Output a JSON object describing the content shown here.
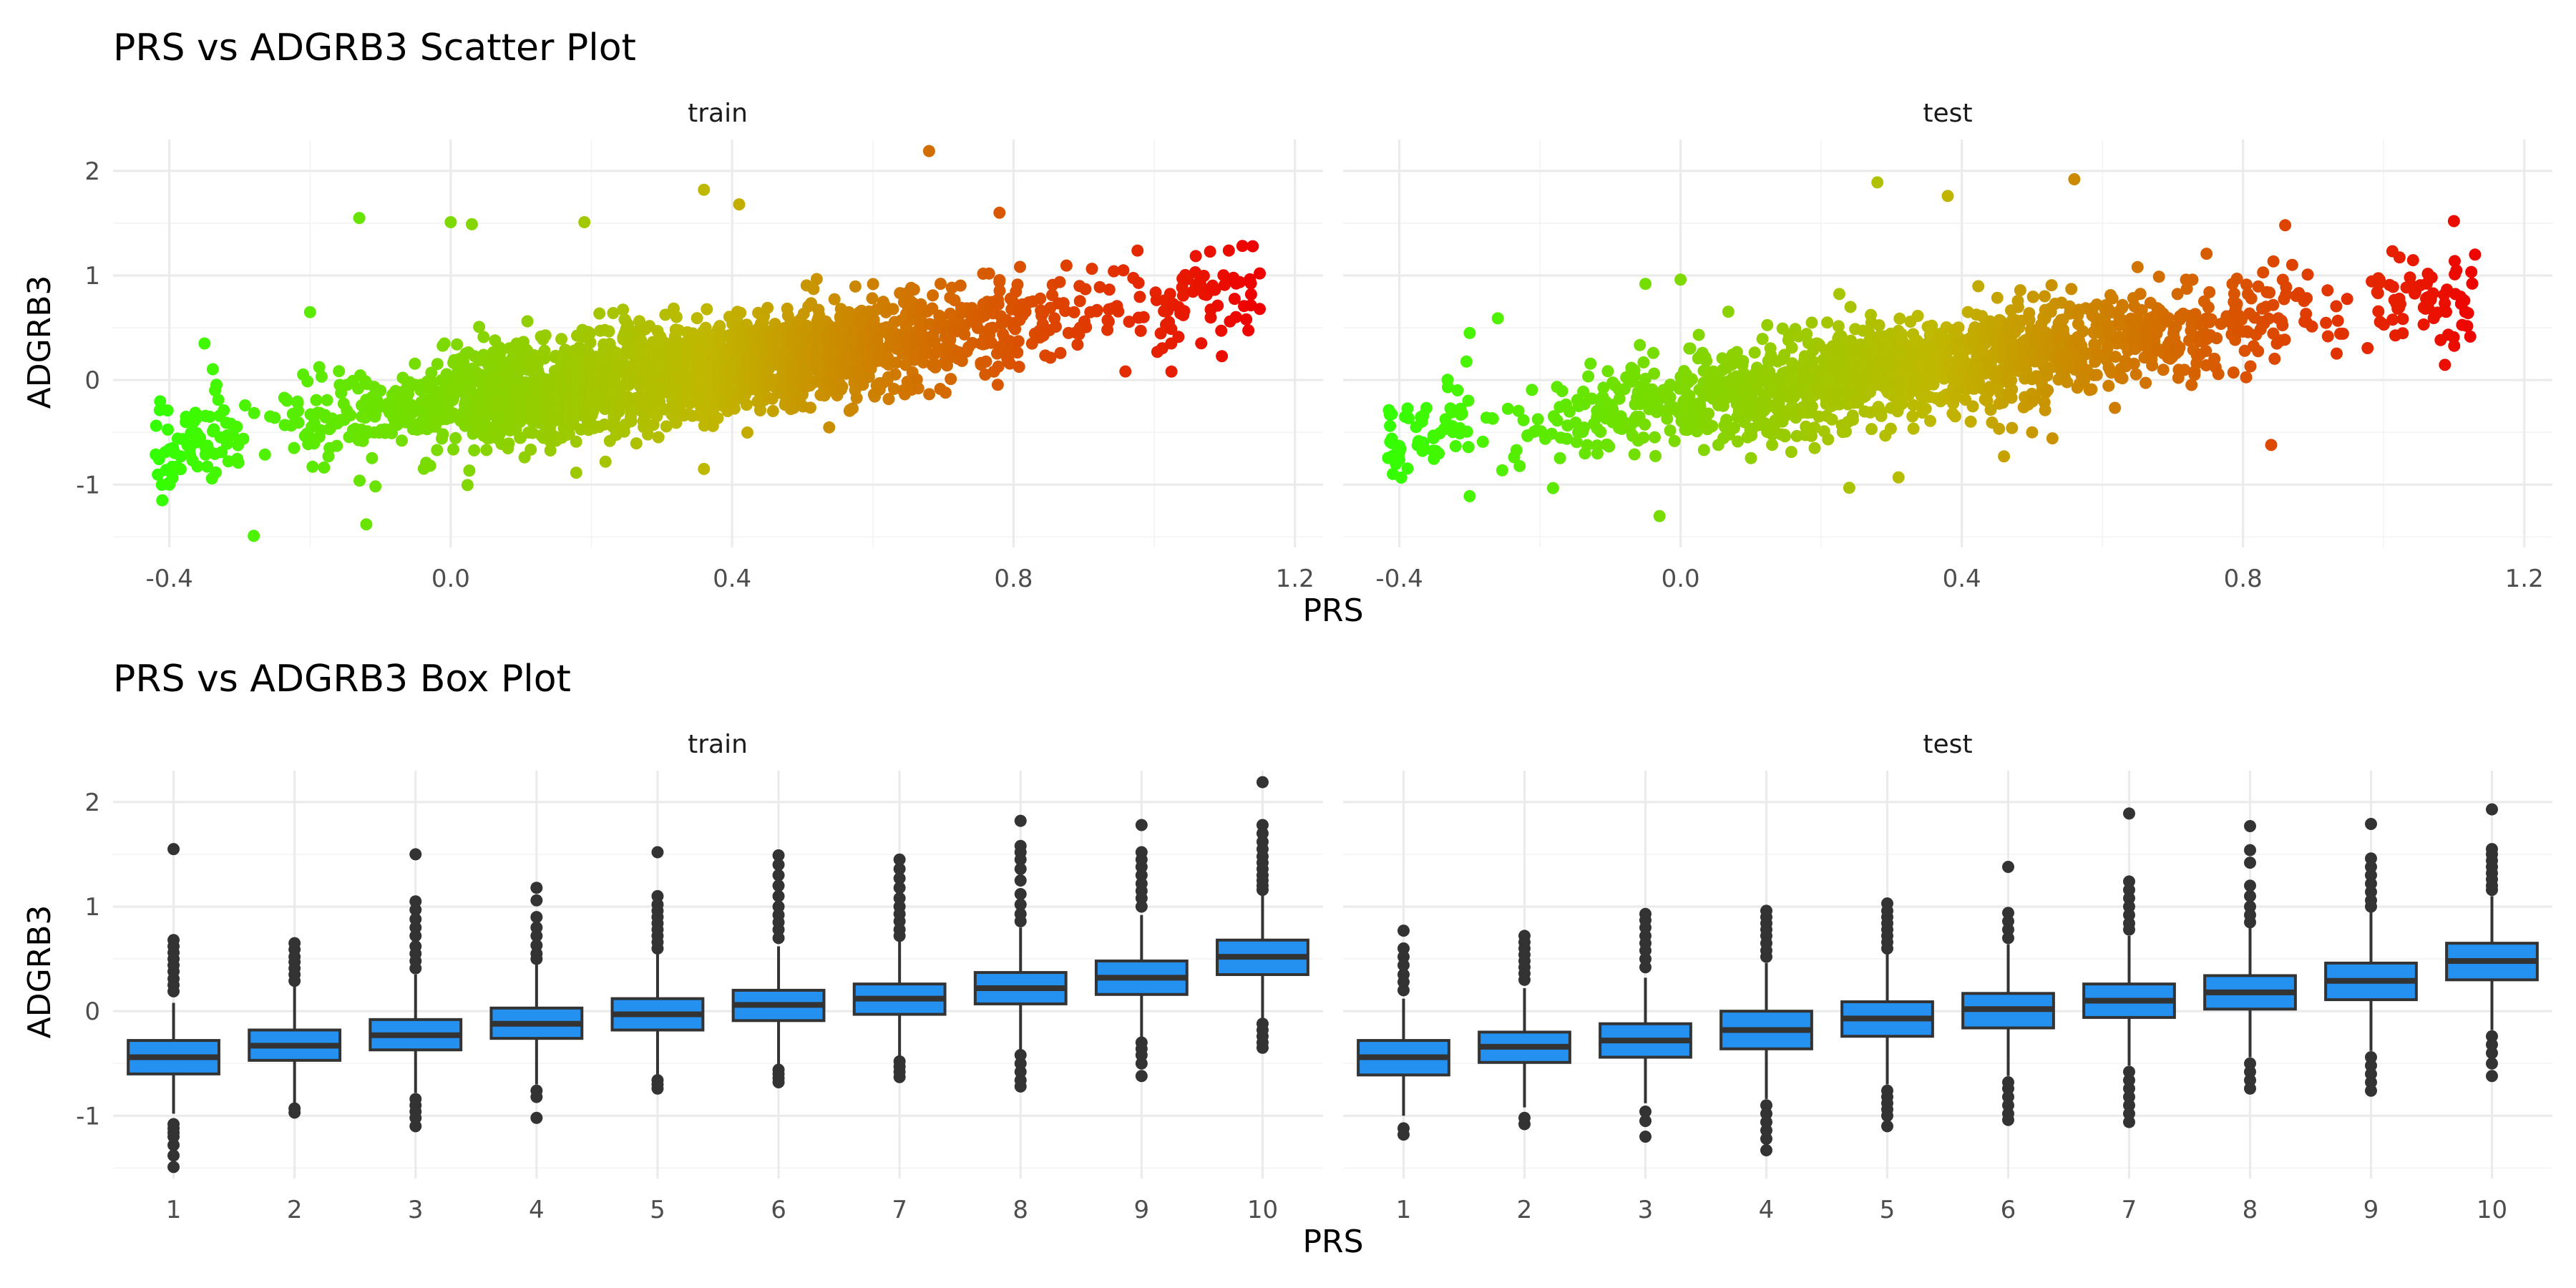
{
  "chart_data": [
    {
      "type": "scatter",
      "title": "PRS vs ADGRB3 Scatter Plot",
      "xlabel": "PRS",
      "ylabel": "ADGRB3",
      "xlim": [
        -0.48,
        1.24
      ],
      "ylim": [
        -1.6,
        2.3
      ],
      "x_ticks": [
        -0.4,
        0.0,
        0.4,
        0.8,
        1.2
      ],
      "y_ticks": [
        -1,
        0,
        1,
        2
      ],
      "x_tick_labels": [
        "-0.4",
        "0.0",
        "0.4",
        "0.8",
        "1.2"
      ],
      "y_tick_labels": [
        "-1",
        "0",
        "1",
        "2"
      ],
      "color_scale": {
        "low": "#33ff00",
        "mid": "#c0b800",
        "high": "#ee0000",
        "range": [
          -0.42,
          1.15
        ],
        "mapped_to": "x"
      },
      "grid": true,
      "legend": "none",
      "panels": [
        {
          "name": "train",
          "trend": {
            "slope": 0.93,
            "intercept": -0.22,
            "noise_sd": 0.24,
            "x_range": [
              -0.42,
              1.14
            ],
            "n": 2200
          },
          "points_notable": [
            [
              -0.13,
              1.55
            ],
            [
              0.68,
              2.19
            ],
            [
              0.36,
              1.82
            ],
            [
              0.41,
              1.68
            ],
            [
              0.0,
              1.51
            ],
            [
              0.03,
              1.49
            ],
            [
              -0.12,
              -1.38
            ],
            [
              -0.28,
              -1.49
            ],
            [
              -0.41,
              -1.15
            ],
            [
              -0.4,
              -1.0
            ],
            [
              1.14,
              1.28
            ],
            [
              1.15,
              1.02
            ],
            [
              1.15,
              0.68
            ],
            [
              1.1,
              0.91
            ],
            [
              0.36,
              -0.85
            ],
            [
              0.22,
              -0.78
            ],
            [
              -0.35,
              0.35
            ],
            [
              -0.2,
              0.65
            ],
            [
              0.19,
              1.51
            ],
            [
              0.78,
              1.6
            ]
          ]
        },
        {
          "name": "test",
          "trend": {
            "slope": 0.93,
            "intercept": -0.2,
            "noise_sd": 0.24,
            "x_range": [
              -0.42,
              1.13
            ],
            "n": 1500
          },
          "points_notable": [
            [
              -0.4,
              -0.63
            ],
            [
              -0.3,
              -1.11
            ],
            [
              0.28,
              1.89
            ],
            [
              0.56,
              1.92
            ],
            [
              0.38,
              1.76
            ],
            [
              -0.26,
              0.59
            ],
            [
              -0.3,
              0.45
            ],
            [
              1.1,
              1.52
            ],
            [
              1.13,
              1.2
            ],
            [
              1.12,
              0.64
            ],
            [
              0.84,
              -0.62
            ],
            [
              0.24,
              -1.03
            ],
            [
              0.31,
              -0.93
            ],
            [
              -0.03,
              -1.3
            ],
            [
              0.86,
              1.48
            ],
            [
              0.5,
              -0.5
            ],
            [
              0.46,
              -0.73
            ],
            [
              0.65,
              1.08
            ],
            [
              -0.05,
              0.92
            ],
            [
              0.0,
              0.96
            ]
          ]
        }
      ]
    },
    {
      "type": "box",
      "title": "PRS vs ADGRB3 Box Plot",
      "xlabel": "PRS",
      "ylabel": "ADGRB3",
      "categories": [
        "1",
        "2",
        "3",
        "4",
        "5",
        "6",
        "7",
        "8",
        "9",
        "10"
      ],
      "ylim": [
        -1.6,
        2.3
      ],
      "y_ticks": [
        -1,
        0,
        1,
        2
      ],
      "y_tick_labels": [
        "-1",
        "0",
        "1",
        "2"
      ],
      "box_fill": "#2491f0",
      "box_stroke": "#333333",
      "grid": true,
      "legend": "none",
      "panels": [
        {
          "name": "train",
          "boxes": [
            {
              "q1": -0.6,
              "median": -0.44,
              "q3": -0.28,
              "whisker_low": -0.98,
              "whisker_high": 0.08,
              "outliers": [
                1.55,
                0.68,
                0.62,
                0.56,
                0.5,
                0.44,
                0.38,
                0.31,
                0.25,
                0.19,
                -1.08,
                -1.12,
                -1.16,
                -1.2,
                -1.28,
                -1.38,
                -1.49
              ]
            },
            {
              "q1": -0.47,
              "median": -0.33,
              "q3": -0.18,
              "whisker_low": -0.88,
              "whisker_high": 0.24,
              "outliers": [
                0.65,
                0.59,
                0.52,
                0.47,
                0.41,
                0.35,
                0.29,
                -0.93,
                -0.97
              ]
            },
            {
              "q1": -0.37,
              "median": -0.23,
              "q3": -0.08,
              "whisker_low": -0.78,
              "whisker_high": 0.35,
              "outliers": [
                1.5,
                1.05,
                0.97,
                0.88,
                0.8,
                0.72,
                0.62,
                0.55,
                0.48,
                0.41,
                -0.84,
                -0.9,
                -0.96,
                -1.02,
                -1.1
              ]
            },
            {
              "q1": -0.26,
              "median": -0.12,
              "q3": 0.03,
              "whisker_low": -0.7,
              "whisker_high": 0.45,
              "outliers": [
                1.18,
                1.06,
                0.9,
                0.8,
                0.72,
                0.63,
                0.55,
                0.5,
                -0.76,
                -0.82,
                -1.02
              ]
            },
            {
              "q1": -0.18,
              "median": -0.03,
              "q3": 0.12,
              "whisker_low": -0.62,
              "whisker_high": 0.55,
              "outliers": [
                1.52,
                1.1,
                1.02,
                0.96,
                0.9,
                0.84,
                0.78,
                0.72,
                0.66,
                0.6,
                -0.66,
                -0.7,
                -0.74
              ]
            },
            {
              "q1": -0.09,
              "median": 0.06,
              "q3": 0.2,
              "whisker_low": -0.52,
              "whisker_high": 0.62,
              "outliers": [
                1.49,
                1.4,
                1.3,
                1.2,
                1.1,
                1.0,
                0.92,
                0.85,
                0.78,
                0.7,
                -0.56,
                -0.6,
                -0.64,
                -0.68
              ]
            },
            {
              "q1": -0.03,
              "median": 0.12,
              "q3": 0.26,
              "whisker_low": -0.45,
              "whisker_high": 0.68,
              "outliers": [
                1.45,
                1.36,
                1.27,
                1.18,
                1.08,
                1.0,
                0.93,
                0.86,
                0.78,
                0.72,
                -0.48,
                -0.53,
                -0.58,
                -0.63
              ]
            },
            {
              "q1": 0.07,
              "median": 0.22,
              "q3": 0.37,
              "whisker_low": -0.37,
              "whisker_high": 0.8,
              "outliers": [
                1.82,
                1.58,
                1.52,
                1.45,
                1.36,
                1.25,
                1.12,
                1.02,
                0.93,
                0.86,
                -0.42,
                -0.5,
                -0.58,
                -0.66,
                -0.72
              ]
            },
            {
              "q1": 0.16,
              "median": 0.32,
              "q3": 0.48,
              "whisker_low": -0.27,
              "whisker_high": 0.92,
              "outliers": [
                1.78,
                1.52,
                1.45,
                1.38,
                1.3,
                1.22,
                1.15,
                1.08,
                1.0,
                -0.3,
                -0.36,
                -0.42,
                -0.5,
                -0.62
              ]
            },
            {
              "q1": 0.35,
              "median": 0.52,
              "q3": 0.68,
              "whisker_low": -0.08,
              "whisker_high": 1.12,
              "outliers": [
                2.19,
                1.78,
                1.7,
                1.62,
                1.55,
                1.48,
                1.42,
                1.36,
                1.3,
                1.25,
                1.2,
                1.16,
                -0.12,
                -0.18,
                -0.24,
                -0.3,
                -0.35
              ]
            }
          ]
        },
        {
          "name": "test",
          "boxes": [
            {
              "q1": -0.61,
              "median": -0.44,
              "q3": -0.28,
              "whisker_low": -1.0,
              "whisker_high": 0.12,
              "outliers": [
                0.77,
                0.6,
                0.52,
                0.44,
                0.35,
                0.28,
                0.2,
                -1.12,
                -1.18
              ]
            },
            {
              "q1": -0.49,
              "median": -0.34,
              "q3": -0.2,
              "whisker_low": -0.92,
              "whisker_high": 0.22,
              "outliers": [
                0.72,
                0.66,
                0.6,
                0.54,
                0.48,
                0.42,
                0.36,
                0.3,
                -1.02,
                -1.08
              ]
            },
            {
              "q1": -0.44,
              "median": -0.28,
              "q3": -0.12,
              "whisker_low": -0.88,
              "whisker_high": 0.32,
              "outliers": [
                0.93,
                0.87,
                0.8,
                0.72,
                0.65,
                0.58,
                0.5,
                0.42,
                -0.96,
                -1.05,
                -1.2
              ]
            },
            {
              "q1": -0.36,
              "median": -0.18,
              "q3": 0.0,
              "whisker_low": -0.84,
              "whisker_high": 0.46,
              "outliers": [
                0.96,
                0.9,
                0.84,
                0.78,
                0.72,
                0.65,
                0.58,
                0.52,
                -0.9,
                -0.98,
                -1.06,
                -1.14,
                -1.22,
                -1.33
              ]
            },
            {
              "q1": -0.24,
              "median": -0.07,
              "q3": 0.09,
              "whisker_low": -0.7,
              "whisker_high": 0.56,
              "outliers": [
                1.03,
                0.96,
                0.9,
                0.84,
                0.78,
                0.72,
                0.66,
                0.6,
                -0.76,
                -0.82,
                -0.88,
                -0.94,
                -1.0,
                -1.1
              ]
            },
            {
              "q1": -0.16,
              "median": 0.02,
              "q3": 0.17,
              "whisker_low": -0.62,
              "whisker_high": 0.64,
              "outliers": [
                1.38,
                0.94,
                0.86,
                0.78,
                0.7,
                -0.68,
                -0.74,
                -0.82,
                -0.9,
                -0.98,
                -1.04
              ]
            },
            {
              "q1": -0.06,
              "median": 0.1,
              "q3": 0.26,
              "whisker_low": -0.52,
              "whisker_high": 0.72,
              "outliers": [
                1.89,
                1.24,
                1.16,
                1.08,
                1.0,
                0.92,
                0.84,
                0.78,
                -0.58,
                -0.66,
                -0.74,
                -0.82,
                -0.9,
                -0.98,
                -1.06
              ]
            },
            {
              "q1": 0.02,
              "median": 0.18,
              "q3": 0.34,
              "whisker_low": -0.44,
              "whisker_high": 0.8,
              "outliers": [
                1.77,
                1.54,
                1.42,
                1.2,
                1.1,
                1.0,
                0.92,
                0.85,
                -0.5,
                -0.58,
                -0.66,
                -0.74
              ]
            },
            {
              "q1": 0.11,
              "median": 0.29,
              "q3": 0.46,
              "whisker_low": -0.38,
              "whisker_high": 0.96,
              "outliers": [
                1.79,
                1.46,
                1.38,
                1.3,
                1.22,
                1.14,
                1.06,
                1.0,
                -0.44,
                -0.52,
                -0.6,
                -0.68,
                -0.76
              ]
            },
            {
              "q1": 0.3,
              "median": 0.48,
              "q3": 0.65,
              "whisker_low": -0.18,
              "whisker_high": 1.1,
              "outliers": [
                1.93,
                1.55,
                1.5,
                1.44,
                1.38,
                1.32,
                1.26,
                1.2,
                1.16,
                -0.24,
                -0.32,
                -0.4,
                -0.5,
                -0.62
              ]
            }
          ]
        }
      ]
    }
  ]
}
